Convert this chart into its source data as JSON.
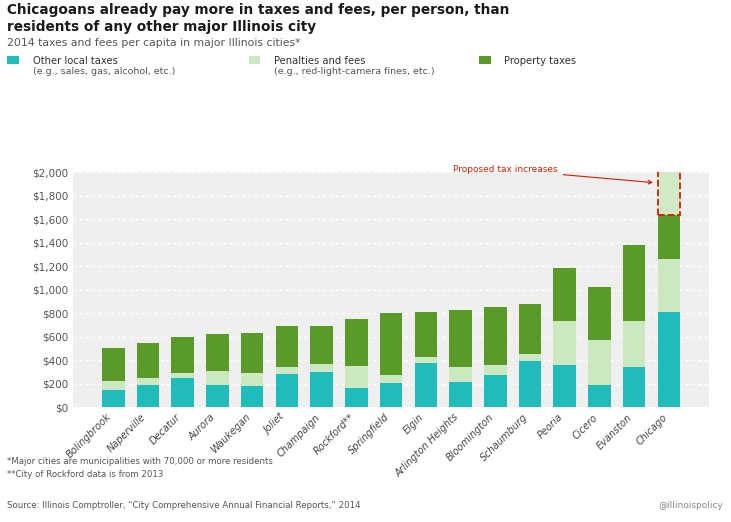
{
  "title_line1": "Chicagoans already pay more in taxes and fees, per person, than",
  "title_line2": "residents of any other major Illinois city",
  "subtitle": "2014 taxes and fees per capita in major Illinois cities*",
  "cities": [
    "Bolingbrook",
    "Naperville",
    "Decatur",
    "Aurora",
    "Waukegan",
    "Joliet",
    "Champaign",
    "Rockford**",
    "Springfield",
    "Elgin",
    "Arlington Heights",
    "Bloomington",
    "Schaumburg",
    "Peoria",
    "Cicero",
    "Evanston",
    "Chicago"
  ],
  "other_local_taxes": [
    150,
    190,
    250,
    190,
    180,
    280,
    300,
    160,
    205,
    380,
    210,
    270,
    390,
    355,
    190,
    340,
    810
  ],
  "penalties_and_fees": [
    70,
    60,
    40,
    120,
    115,
    60,
    70,
    190,
    70,
    50,
    130,
    90,
    65,
    380,
    380,
    390,
    450
  ],
  "property_taxes": [
    280,
    300,
    310,
    310,
    340,
    355,
    320,
    400,
    525,
    380,
    490,
    490,
    420,
    450,
    450,
    650,
    380
  ],
  "chicago_proposed_increase": 450,
  "color_other": "#20bcbc",
  "color_penalties": "#cce8c0",
  "color_property": "#5a9a28",
  "background_color": "#efefef",
  "ylim": [
    0,
    2000
  ],
  "yticks": [
    0,
    200,
    400,
    600,
    800,
    1000,
    1200,
    1400,
    1600,
    1800,
    2000
  ],
  "footnote1": "*Major cities are municipalities with 70,000 or more residents",
  "footnote2": "**City of Rockford data is from 2013",
  "source": "Source: Illinois Comptroller, “City Comprehensive Annual Financial Reports,” 2014",
  "watermark": "@illinoispolicy",
  "proposed_label": "Proposed tax increases",
  "proposed_color": "#cc2200"
}
